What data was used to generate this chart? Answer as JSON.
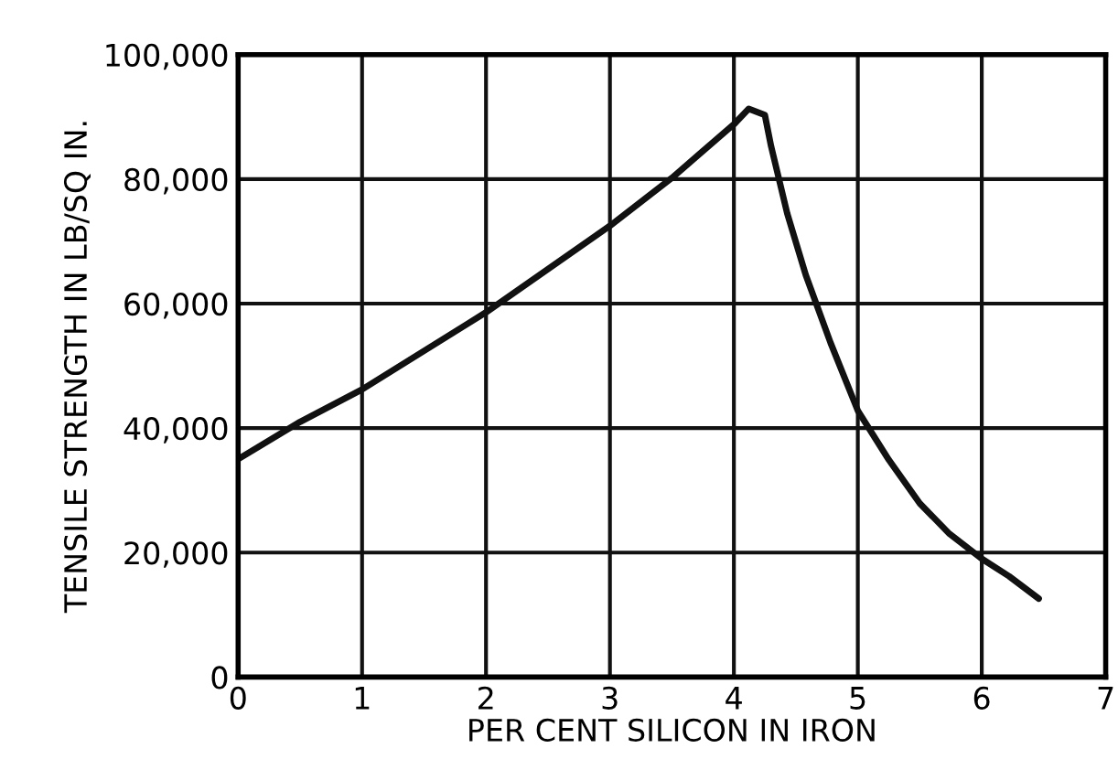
{
  "chart_data": {
    "type": "line",
    "xlabel": "PER CENT SILICON IN IRON",
    "ylabel": "TENSILE STRENGTH IN LB/SQ IN.",
    "x": [
      0,
      0.5,
      1,
      2,
      3,
      3.5,
      4,
      4.12,
      4.25,
      4.3,
      4.43,
      4.58,
      4.78,
      5,
      5.25,
      5.5,
      5.74,
      6,
      6.22,
      6.46
    ],
    "series": [
      {
        "color": "#111111",
        "values": [
          35000,
          41000,
          46200,
          58600,
          72500,
          80200,
          88800,
          91300,
          90300,
          85300,
          74500,
          64600,
          53700,
          42800,
          34900,
          27900,
          23000,
          19000,
          16200,
          12600
        ]
      }
    ],
    "xlim": [
      0,
      7
    ],
    "xticks": [
      0,
      1,
      2,
      3,
      4,
      5,
      6,
      7
    ],
    "ylim": [
      0,
      100000
    ],
    "yticks": [
      {
        "value": 0,
        "label": "0"
      },
      {
        "value": 20000,
        "label": "20,000"
      },
      {
        "value": 40000,
        "label": "40,000"
      },
      {
        "value": 60000,
        "label": "60,000"
      },
      {
        "value": 80000,
        "label": "80,000"
      },
      {
        "value": 100000,
        "label": "100,000"
      }
    ],
    "grid": true,
    "legend": false,
    "marker": "none",
    "line_style": "solid"
  }
}
